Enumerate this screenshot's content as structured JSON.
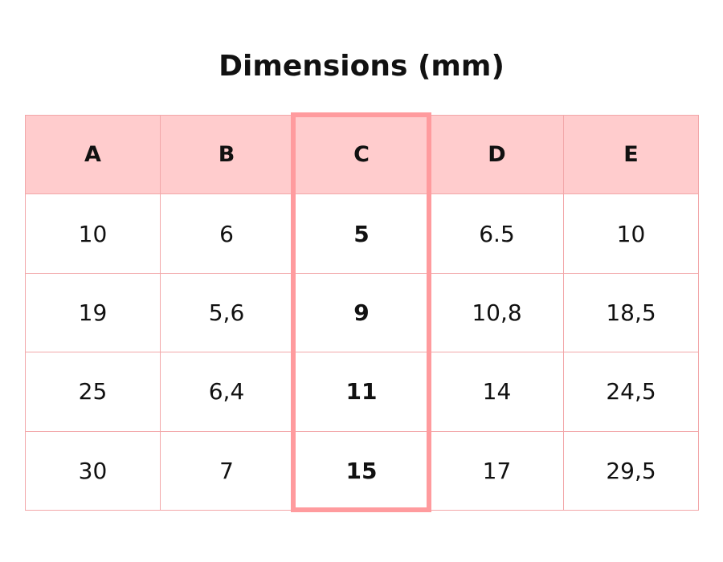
{
  "title": "Dimensions (mm)",
  "table": {
    "header": [
      "A",
      "B",
      "C",
      "D",
      "E"
    ],
    "rows": [
      [
        "10",
        "6",
        "5",
        "6.5",
        "10"
      ],
      [
        "19",
        "5,6",
        "9",
        "10,8",
        "18,5"
      ],
      [
        "25",
        "6,4",
        "11",
        "14",
        "24,5"
      ],
      [
        "30",
        "7",
        "15",
        "17",
        "29,5"
      ]
    ]
  }
}
